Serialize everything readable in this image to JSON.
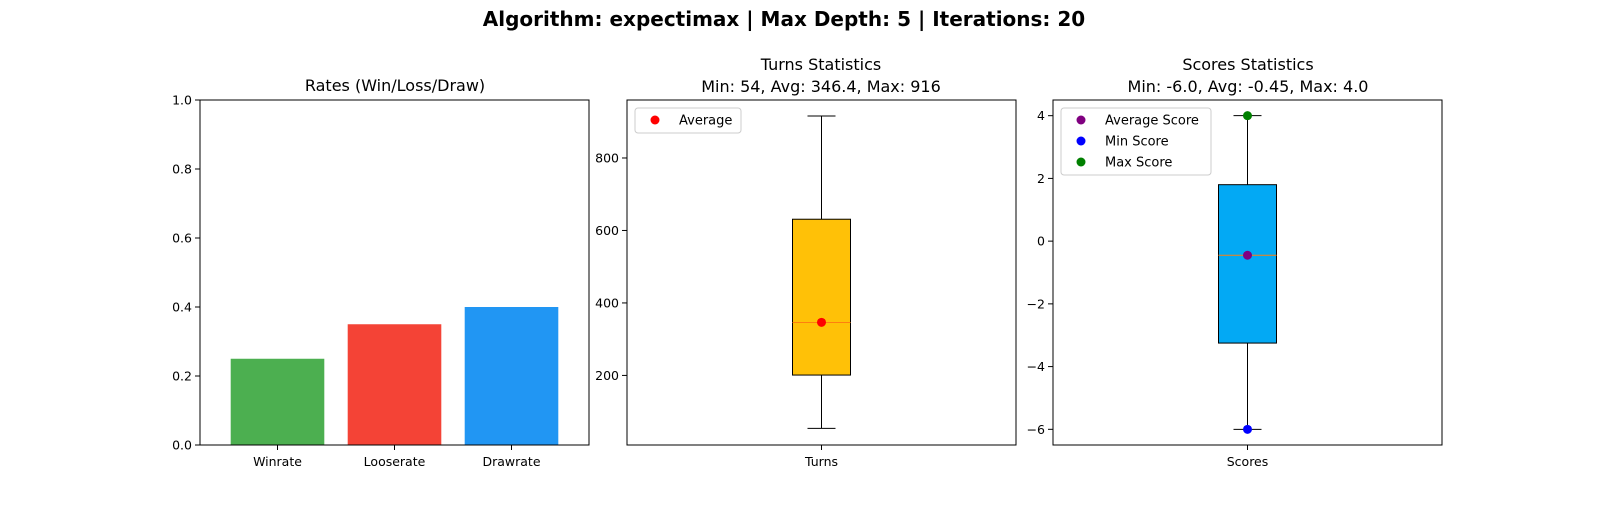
{
  "suptitle": "Algorithm: expectimax | Max Depth: 5 | Iterations: 20",
  "chart_data": [
    {
      "type": "bar",
      "title": "Rates (Win/Loss/Draw)",
      "categories": [
        "Winrate",
        "Looserate",
        "Drawrate"
      ],
      "values": [
        0.25,
        0.35,
        0.4
      ],
      "colors": [
        "#4caf50",
        "#f44336",
        "#2196f3"
      ],
      "ylim": [
        0,
        1.0
      ],
      "yticks": [
        0.0,
        0.2,
        0.4,
        0.6,
        0.8,
        1.0
      ],
      "ytick_labels": [
        "0.0",
        "0.2",
        "0.4",
        "0.6",
        "0.8",
        "1.0"
      ],
      "grid": false
    },
    {
      "type": "box",
      "title": "Turns Statistics",
      "subtitle": "Min: 54, Avg: 346.4, Max: 916",
      "xtick_label": "Turns",
      "box": {
        "whisker_low": 54,
        "q1": 201,
        "median": 346,
        "q3": 631,
        "whisker_high": 916
      },
      "box_color": "#ffc107",
      "median_color": "#ff7f0e",
      "markers": [
        {
          "label": "Average",
          "value": 346.4,
          "color": "#ff0000"
        }
      ],
      "ylim": [
        8,
        960
      ],
      "yticks": [
        200,
        400,
        600,
        800
      ],
      "ytick_labels": [
        "200",
        "400",
        "600",
        "800"
      ],
      "legend_loc": "upper-left",
      "grid": false
    },
    {
      "type": "box",
      "title": "Scores Statistics",
      "subtitle": "Min: -6.0, Avg: -0.45, Max: 4.0",
      "xtick_label": "Scores",
      "box": {
        "whisker_low": -6.0,
        "q1": -3.25,
        "median": -0.45,
        "q3": 1.8,
        "whisker_high": 4.0
      },
      "box_color": "#03a9f4",
      "median_color": "#ff7f0e",
      "markers": [
        {
          "label": "Average Score",
          "value": -0.45,
          "color": "#800080"
        },
        {
          "label": "Min Score",
          "value": -6.0,
          "color": "#0000ff"
        },
        {
          "label": "Max Score",
          "value": 4.0,
          "color": "#008000"
        }
      ],
      "ylim": [
        -6.5,
        4.5
      ],
      "yticks": [
        -6,
        -4,
        -2,
        0,
        2,
        4
      ],
      "ytick_labels": [
        "−6",
        "−4",
        "−2",
        "0",
        "2",
        "4"
      ],
      "legend_loc": "upper-left",
      "grid": false
    }
  ]
}
